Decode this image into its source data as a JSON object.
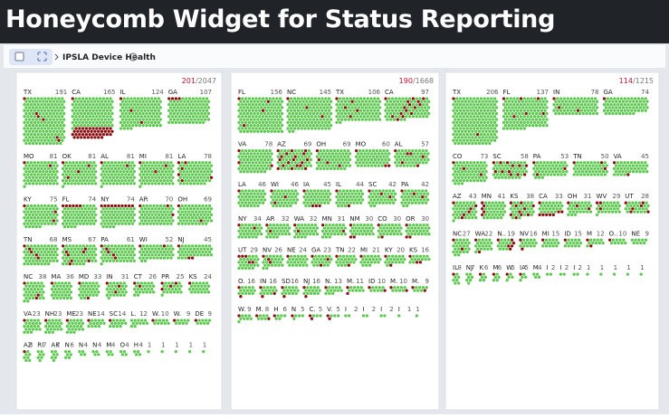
{
  "title": "Honeycomb Widget for Status Reporting",
  "breadcrumb": "IPSLA Device Health",
  "separator": "/",
  "columns": [
    {
      "down": 201,
      "total": 2047,
      "rows": [
        [
          {
            "label": "TX",
            "count": 191,
            "down": 6
          },
          {
            "label": "CA",
            "count": 165,
            "down": 45
          },
          {
            "label": "IL",
            "count": 124,
            "down": 3
          },
          {
            "label": "GA",
            "count": 107,
            "down": 4
          }
        ],
        [
          {
            "label": "MO",
            "count": 81,
            "down": 2
          },
          {
            "label": "OK",
            "count": 81,
            "down": 4
          },
          {
            "label": "AL",
            "count": 81,
            "down": 2
          },
          {
            "label": "MI",
            "count": 81,
            "down": 3
          },
          {
            "label": "LA",
            "count": 78,
            "down": 6
          }
        ],
        [
          {
            "label": "KY",
            "count": 75,
            "down": 3
          },
          {
            "label": "FL",
            "count": 74,
            "down": 6
          },
          {
            "label": "NY",
            "count": 74,
            "down": 10
          },
          {
            "label": "AR",
            "count": 70,
            "down": 3
          },
          {
            "label": "OH",
            "count": 69,
            "down": 2
          }
        ],
        [
          {
            "label": "TN",
            "count": 68,
            "down": 5
          },
          {
            "label": "MS",
            "count": 67,
            "down": 8
          },
          {
            "label": "PA",
            "count": 61,
            "down": 5
          },
          {
            "label": "WI",
            "count": 52,
            "down": 2
          },
          {
            "label": "NJ",
            "count": 45,
            "down": 3
          }
        ],
        [
          {
            "label": "NC",
            "count": 38,
            "down": 3
          },
          {
            "label": "MA",
            "count": 36,
            "down": 1
          },
          {
            "label": "MD",
            "count": 33,
            "down": 2
          },
          {
            "label": "IN",
            "count": 31,
            "down": 3
          },
          {
            "label": "CT",
            "count": 26,
            "down": 2
          },
          {
            "label": "PR",
            "count": 25,
            "down": 4
          },
          {
            "label": "KS",
            "count": 24,
            "down": 1
          }
        ],
        [
          {
            "label": "VA",
            "count": 23,
            "down": 1
          },
          {
            "label": "NH",
            "count": 23,
            "down": 1
          },
          {
            "label": "ME",
            "count": 23,
            "down": 1
          },
          {
            "label": "NE",
            "count": 14,
            "down": 1
          },
          {
            "label": "SC",
            "count": 14,
            "down": 1
          },
          {
            "label": "L.",
            "count": 12,
            "down": 0
          },
          {
            "label": "W.",
            "count": 10,
            "down": 1
          },
          {
            "label": "W.",
            "count": 9,
            "down": 1
          },
          {
            "label": "DE",
            "count": 9,
            "down": 1
          }
        ],
        [
          {
            "label": "AZ",
            "count": 8,
            "down": 1
          },
          {
            "label": "RI",
            "count": 7,
            "down": 0
          },
          {
            "label": "AK",
            "count": 7,
            "down": 0
          },
          {
            "label": "N",
            "count": 6,
            "down": 0
          },
          {
            "label": "N",
            "count": 4,
            "down": 0
          },
          {
            "label": "N",
            "count": 4,
            "down": 0
          },
          {
            "label": "M",
            "count": 4,
            "down": 0
          },
          {
            "label": "O",
            "count": 4,
            "down": 0
          },
          {
            "label": "H",
            "count": 4,
            "down": 0
          },
          {
            "label": null,
            "count": 1,
            "down": 0
          },
          {
            "label": null,
            "count": 1,
            "down": 0
          },
          {
            "label": null,
            "count": 1,
            "down": 0
          },
          {
            "label": null,
            "count": 1,
            "down": 0
          },
          {
            "label": null,
            "count": 1,
            "down": 0
          }
        ]
      ]
    },
    {
      "down": 190,
      "total": 1668,
      "rows": [
        [
          {
            "label": "FL",
            "count": 156,
            "down": 4
          },
          {
            "label": "NC",
            "count": 145,
            "down": 3
          },
          {
            "label": "TX",
            "count": 106,
            "down": 5
          },
          {
            "label": "CA",
            "count": 97,
            "down": 15
          }
        ],
        [
          {
            "label": "VA",
            "count": 78,
            "down": 3
          },
          {
            "label": "AZ",
            "count": 69,
            "down": 18
          },
          {
            "label": "OH",
            "count": 69,
            "down": 4
          },
          {
            "label": "MO",
            "count": 60,
            "down": 3
          },
          {
            "label": "AL",
            "count": 57,
            "down": 6
          }
        ],
        [
          {
            "label": "LA",
            "count": 46,
            "down": 1
          },
          {
            "label": "WI",
            "count": 46,
            "down": 3
          },
          {
            "label": "IA",
            "count": 45,
            "down": 4
          },
          {
            "label": "IL",
            "count": 44,
            "down": 2
          },
          {
            "label": "SC",
            "count": 42,
            "down": 3
          },
          {
            "label": "PA",
            "count": 42,
            "down": 3
          }
        ],
        [
          {
            "label": "NY",
            "count": 34,
            "down": 2
          },
          {
            "label": "AR",
            "count": 32,
            "down": 2
          },
          {
            "label": "WA",
            "count": 32,
            "down": 2
          },
          {
            "label": "MN",
            "count": 31,
            "down": 2
          },
          {
            "label": "NM",
            "count": 30,
            "down": 3
          },
          {
            "label": "CO",
            "count": 30,
            "down": 2
          },
          {
            "label": "OR",
            "count": 30,
            "down": 3
          }
        ],
        [
          {
            "label": "UT",
            "count": 29,
            "down": 5
          },
          {
            "label": "NV",
            "count": 26,
            "down": 3
          },
          {
            "label": "NE",
            "count": 24,
            "down": 1
          },
          {
            "label": "GA",
            "count": 23,
            "down": 3
          },
          {
            "label": "TN",
            "count": 22,
            "down": 2
          },
          {
            "label": "MI",
            "count": 21,
            "down": 1
          },
          {
            "label": "KY",
            "count": 20,
            "down": 2
          },
          {
            "label": "KS",
            "count": 16,
            "down": 3
          }
        ],
        [
          {
            "label": "O.",
            "count": 16,
            "down": 2
          },
          {
            "label": "IN",
            "count": 16,
            "down": 3
          },
          {
            "label": "SD",
            "count": 16,
            "down": 2
          },
          {
            "label": "NJ",
            "count": 16,
            "down": 2
          },
          {
            "label": "N.",
            "count": 13,
            "down": 1
          },
          {
            "label": "M.",
            "count": 11,
            "down": 2
          },
          {
            "label": "ID",
            "count": 10,
            "down": 2
          },
          {
            "label": "M.",
            "count": 10,
            "down": 2
          },
          {
            "label": "M.",
            "count": 9,
            "down": 2
          }
        ],
        [
          {
            "label": "W.",
            "count": 9,
            "down": 1
          },
          {
            "label": "M.",
            "count": 8,
            "down": 2
          },
          {
            "label": "H",
            "count": 6,
            "down": 1
          },
          {
            "label": "N",
            "count": 5,
            "down": 1
          },
          {
            "label": "C.",
            "count": 5,
            "down": 2
          },
          {
            "label": "V.",
            "count": 5,
            "down": 2
          },
          {
            "label": "I",
            "count": 2,
            "down": 0
          },
          {
            "label": "I",
            "count": 2,
            "down": 0
          },
          {
            "label": "I",
            "count": 2,
            "down": 0
          },
          {
            "label": "I",
            "count": 1,
            "down": 0
          },
          {
            "label": null,
            "count": 1,
            "down": 0
          }
        ]
      ]
    },
    {
      "down": 114,
      "total": 1215,
      "rows": [
        [
          {
            "label": "TX",
            "count": 206,
            "down": 2
          },
          {
            "label": "FL",
            "count": 137,
            "down": 6
          },
          {
            "label": "IN",
            "count": 78,
            "down": 3
          },
          {
            "label": "GA",
            "count": 74,
            "down": 1
          }
        ],
        [
          {
            "label": "CO",
            "count": 73,
            "down": 3
          },
          {
            "label": "SC",
            "count": 58,
            "down": 12
          },
          {
            "label": "PA",
            "count": 53,
            "down": 3
          },
          {
            "label": "TN",
            "count": 50,
            "down": 3
          },
          {
            "label": "VA",
            "count": 45,
            "down": 2
          }
        ],
        [
          {
            "label": "AZ",
            "count": 43,
            "down": 6
          },
          {
            "label": "MN",
            "count": 41,
            "down": 5
          },
          {
            "label": "KS",
            "count": 38,
            "down": 10
          },
          {
            "label": "CA",
            "count": 33,
            "down": 8
          },
          {
            "label": "OH",
            "count": 31,
            "down": 3
          },
          {
            "label": "WV",
            "count": 29,
            "down": 3
          },
          {
            "label": "UT",
            "count": 28,
            "down": 6
          }
        ],
        [
          {
            "label": "NC",
            "count": 27,
            "down": 2
          },
          {
            "label": "WA",
            "count": 22,
            "down": 2
          },
          {
            "label": "N..",
            "count": 19,
            "down": 6
          },
          {
            "label": "NV",
            "count": 16,
            "down": 2
          },
          {
            "label": "MI",
            "count": 15,
            "down": 1
          },
          {
            "label": "ID",
            "count": 15,
            "down": 1
          },
          {
            "label": "M",
            "count": 12,
            "down": 2
          },
          {
            "label": "O..",
            "count": 10,
            "down": 1
          },
          {
            "label": "NE",
            "count": 9,
            "down": 0
          }
        ],
        [
          {
            "label": "IL",
            "count": 8,
            "down": 1
          },
          {
            "label": "NJ",
            "count": 7,
            "down": 0
          },
          {
            "label": "K",
            "count": 6,
            "down": 1
          },
          {
            "label": "M",
            "count": 6,
            "down": 1
          },
          {
            "label": "W.",
            "count": 5,
            "down": 1
          },
          {
            "label": "IA",
            "count": 5,
            "down": 1
          },
          {
            "label": "M",
            "count": 4,
            "down": 0
          },
          {
            "label": "I",
            "count": 2,
            "down": 0
          },
          {
            "label": "I",
            "count": 2,
            "down": 0
          },
          {
            "label": "I",
            "count": 2,
            "down": 0
          },
          {
            "label": null,
            "count": 1,
            "down": 0
          },
          {
            "label": null,
            "count": 1,
            "down": 0
          },
          {
            "label": null,
            "count": 1,
            "down": 0
          },
          {
            "label": null,
            "count": 1,
            "down": 0
          },
          {
            "label": null,
            "count": 1,
            "down": 0
          }
        ]
      ]
    }
  ]
}
